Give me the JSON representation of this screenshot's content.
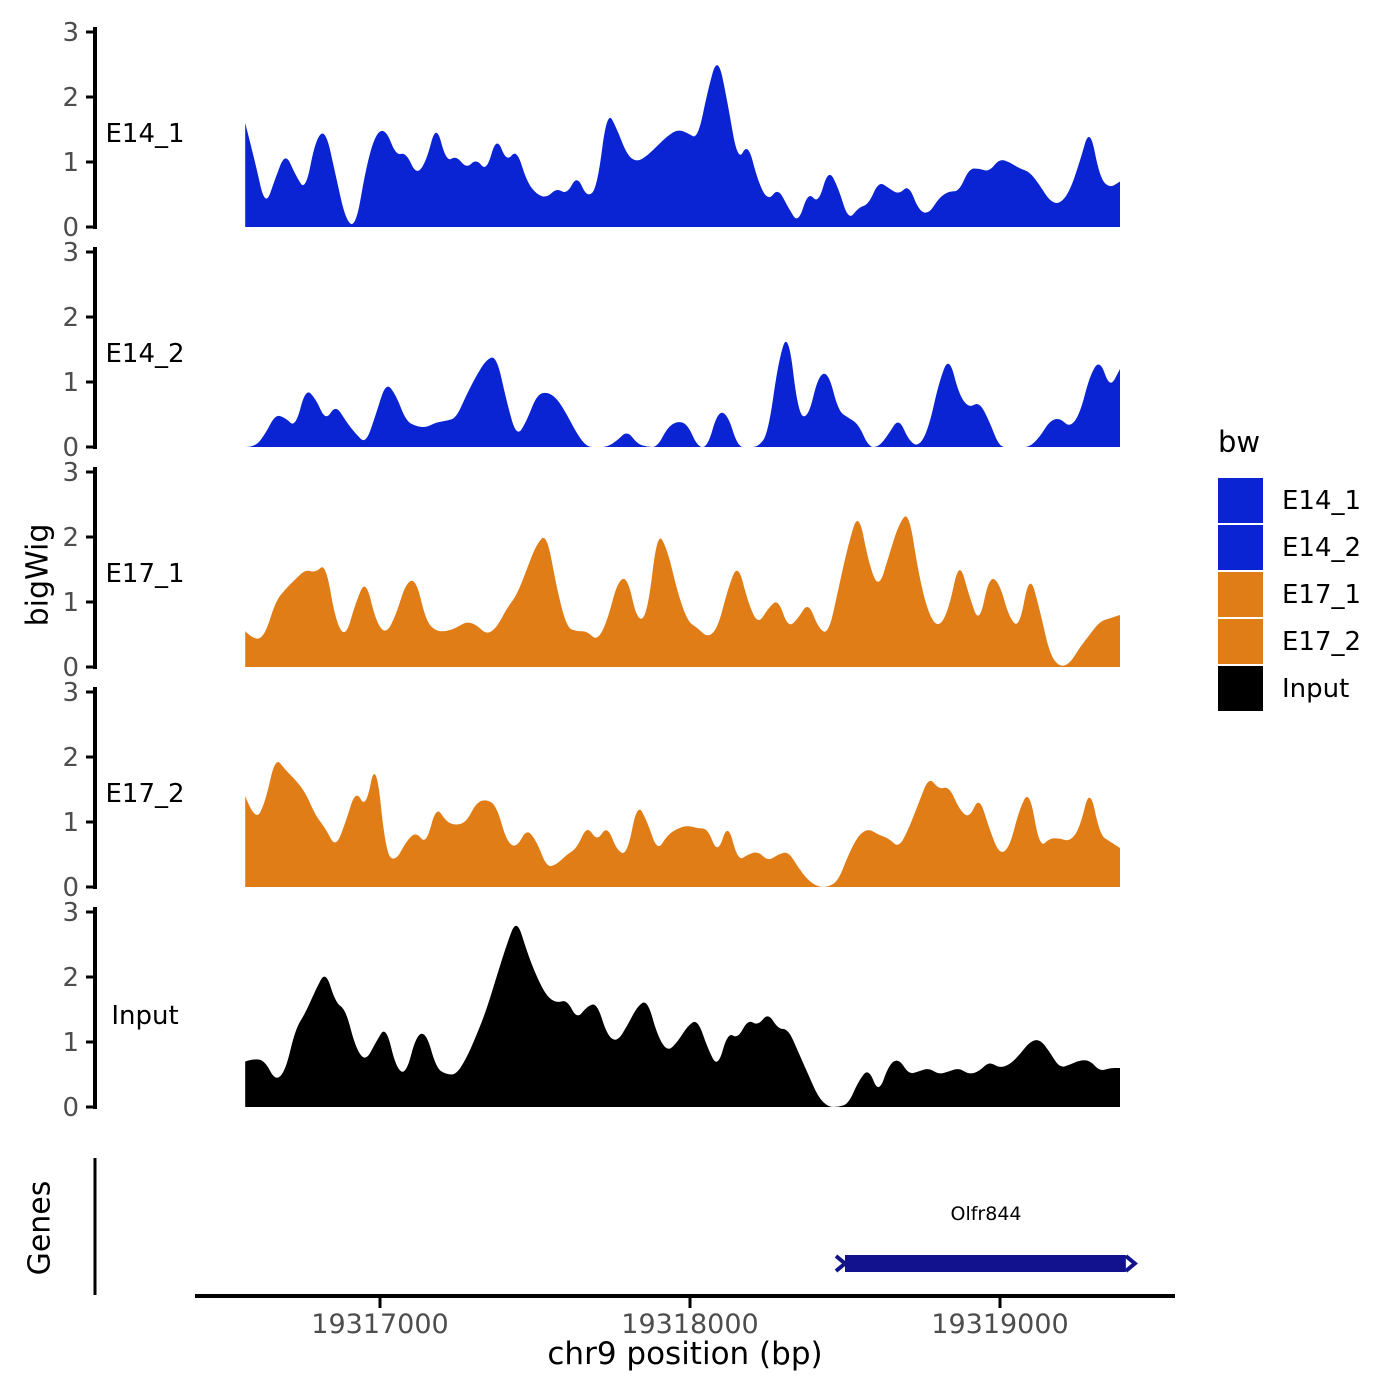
{
  "colors": {
    "blue": "#0a24d3",
    "orange": "#e07d17",
    "black": "#000000",
    "gene": "#12128f",
    "tick_label": "#4d4d4d"
  },
  "legend": {
    "title": "bw",
    "entries": [
      {
        "label": "E14_1",
        "color": "#0a24d3"
      },
      {
        "label": "E14_2",
        "color": "#0a24d3"
      },
      {
        "label": "E17_1",
        "color": "#e07d17"
      },
      {
        "label": "E17_2",
        "color": "#e07d17"
      },
      {
        "label": "Input",
        "color": "#000000"
      }
    ]
  },
  "chart_data": {
    "type": "area",
    "title": "",
    "xlabel": "chr9 position (bp)",
    "ylabel": "bigWig",
    "ylim": [
      0,
      3
    ],
    "y_ticks": [
      "0",
      "1",
      "2",
      "3"
    ],
    "x_ticks": [
      {
        "label": "19317000",
        "bp": 19317000
      },
      {
        "label": "19318000",
        "bp": 19318000
      },
      {
        "label": "19319000",
        "bp": 19319000
      }
    ],
    "x_start_bp": 19316565,
    "x_end_bp": 19319387,
    "grid": false,
    "legend_position": "right",
    "tracks": [
      {
        "name": "E14_1",
        "color": "#0a24d3",
        "values": [
          1.6,
          1.0,
          0.3,
          0.75,
          1.15,
          0.8,
          0.55,
          1.35,
          1.5,
          0.8,
          0.1,
          0.0,
          0.9,
          1.45,
          1.5,
          1.1,
          1.15,
          0.8,
          1.0,
          1.6,
          1.0,
          1.1,
          0.9,
          1.05,
          0.85,
          1.4,
          1.0,
          1.2,
          0.7,
          0.5,
          0.45,
          0.6,
          0.5,
          0.8,
          0.45,
          0.6,
          1.8,
          1.5,
          1.1,
          1.0,
          1.1,
          1.25,
          1.4,
          1.5,
          1.45,
          1.35,
          2.1,
          2.65,
          1.9,
          1.0,
          1.3,
          0.7,
          0.4,
          0.6,
          0.3,
          0.05,
          0.55,
          0.35,
          0.9,
          0.6,
          0.1,
          0.3,
          0.35,
          0.7,
          0.6,
          0.5,
          0.65,
          0.25,
          0.2,
          0.45,
          0.55,
          0.55,
          0.9,
          0.9,
          0.85,
          1.05,
          1.0,
          0.9,
          0.85,
          0.65,
          0.4,
          0.35,
          0.55,
          1.0,
          1.55,
          0.75,
          0.6,
          0.7
        ]
      },
      {
        "name": "E14_2",
        "color": "#0a24d3",
        "values": [
          0.0,
          0.0,
          0.2,
          0.5,
          0.45,
          0.3,
          0.9,
          0.75,
          0.4,
          0.65,
          0.4,
          0.2,
          0.05,
          0.5,
          1.0,
          0.8,
          0.4,
          0.32,
          0.3,
          0.38,
          0.4,
          0.45,
          0.8,
          1.1,
          1.35,
          1.4,
          0.7,
          0.15,
          0.4,
          0.8,
          0.85,
          0.75,
          0.5,
          0.2,
          0.0,
          0.0,
          0.0,
          0.1,
          0.25,
          0.05,
          0.0,
          0.0,
          0.3,
          0.4,
          0.35,
          0.0,
          0.0,
          0.55,
          0.5,
          0.0,
          0.0,
          0.0,
          0.2,
          1.3,
          1.8,
          0.5,
          0.45,
          1.1,
          1.15,
          0.55,
          0.45,
          0.35,
          0.0,
          0.0,
          0.2,
          0.45,
          0.1,
          0.0,
          0.3,
          1.0,
          1.4,
          0.8,
          0.6,
          0.7,
          0.4,
          0.0,
          0.0,
          0.0,
          0.0,
          0.15,
          0.4,
          0.45,
          0.3,
          0.5,
          1.1,
          1.35,
          0.9,
          1.2
        ]
      },
      {
        "name": "E17_1",
        "color": "#e07d17",
        "values": [
          0.55,
          0.4,
          0.5,
          1.0,
          1.2,
          1.35,
          1.5,
          1.45,
          1.6,
          0.7,
          0.45,
          1.0,
          1.35,
          0.7,
          0.5,
          0.8,
          1.3,
          1.35,
          0.7,
          0.55,
          0.55,
          0.6,
          0.7,
          0.65,
          0.5,
          0.6,
          0.9,
          1.1,
          1.5,
          1.9,
          2.05,
          1.2,
          0.6,
          0.55,
          0.55,
          0.4,
          0.7,
          1.3,
          1.4,
          0.7,
          0.8,
          2.1,
          1.8,
          1.15,
          0.7,
          0.6,
          0.45,
          0.6,
          1.2,
          1.6,
          1.0,
          0.65,
          0.9,
          1.05,
          0.6,
          0.75,
          1.0,
          0.6,
          0.5,
          1.2,
          1.9,
          2.4,
          1.6,
          1.2,
          1.7,
          2.2,
          2.4,
          1.4,
          0.8,
          0.6,
          0.9,
          1.65,
          1.1,
          0.65,
          1.4,
          1.3,
          0.75,
          0.6,
          1.45,
          0.9,
          0.2,
          0.0,
          0.05,
          0.3,
          0.5,
          0.7,
          0.75,
          0.8
        ]
      },
      {
        "name": "E17_2",
        "color": "#e07d17",
        "values": [
          1.4,
          1.0,
          1.3,
          2.0,
          1.8,
          1.65,
          1.45,
          1.1,
          0.9,
          0.6,
          1.0,
          1.5,
          1.2,
          2.0,
          0.5,
          0.4,
          0.7,
          0.85,
          0.65,
          1.25,
          1.0,
          0.95,
          1.0,
          1.3,
          1.35,
          1.25,
          0.7,
          0.6,
          0.9,
          0.7,
          0.3,
          0.35,
          0.5,
          0.6,
          0.95,
          0.7,
          0.95,
          0.55,
          0.5,
          1.3,
          1.0,
          0.55,
          0.8,
          0.9,
          0.95,
          0.9,
          0.9,
          0.5,
          1.0,
          0.4,
          0.5,
          0.55,
          0.4,
          0.5,
          0.55,
          0.3,
          0.1,
          0.0,
          0.0,
          0.1,
          0.5,
          0.8,
          0.9,
          0.8,
          0.75,
          0.6,
          0.9,
          1.3,
          1.7,
          1.5,
          1.55,
          1.2,
          1.05,
          1.4,
          0.9,
          0.5,
          0.6,
          1.2,
          1.5,
          0.6,
          0.75,
          0.75,
          0.7,
          0.9,
          1.55,
          0.8,
          0.7,
          0.6
        ]
      },
      {
        "name": "Input",
        "color": "#000000",
        "values": [
          0.7,
          0.75,
          0.7,
          0.4,
          0.55,
          1.2,
          1.45,
          1.8,
          2.1,
          1.6,
          1.5,
          0.9,
          0.7,
          1.0,
          1.25,
          0.6,
          0.5,
          1.1,
          1.15,
          0.6,
          0.5,
          0.5,
          0.75,
          1.1,
          1.5,
          2.0,
          2.5,
          2.9,
          2.4,
          2.0,
          1.7,
          1.6,
          1.65,
          1.35,
          1.55,
          1.6,
          1.1,
          1.0,
          1.25,
          1.55,
          1.65,
          1.1,
          0.85,
          1.0,
          1.25,
          1.35,
          0.9,
          0.6,
          1.15,
          1.05,
          1.35,
          1.25,
          1.45,
          1.2,
          1.2,
          0.85,
          0.5,
          0.15,
          0.0,
          0.0,
          0.05,
          0.4,
          0.6,
          0.2,
          0.65,
          0.75,
          0.5,
          0.55,
          0.6,
          0.5,
          0.55,
          0.6,
          0.5,
          0.55,
          0.7,
          0.6,
          0.65,
          0.8,
          1.0,
          1.05,
          0.85,
          0.6,
          0.65,
          0.72,
          0.72,
          0.55,
          0.6,
          0.6
        ]
      }
    ],
    "genes_panel": {
      "title": "Genes",
      "genes": [
        {
          "name": "Olfr844",
          "start_bp": 19318500,
          "end_bp": 19319406,
          "strand": "+",
          "color": "#12128f"
        }
      ]
    }
  }
}
